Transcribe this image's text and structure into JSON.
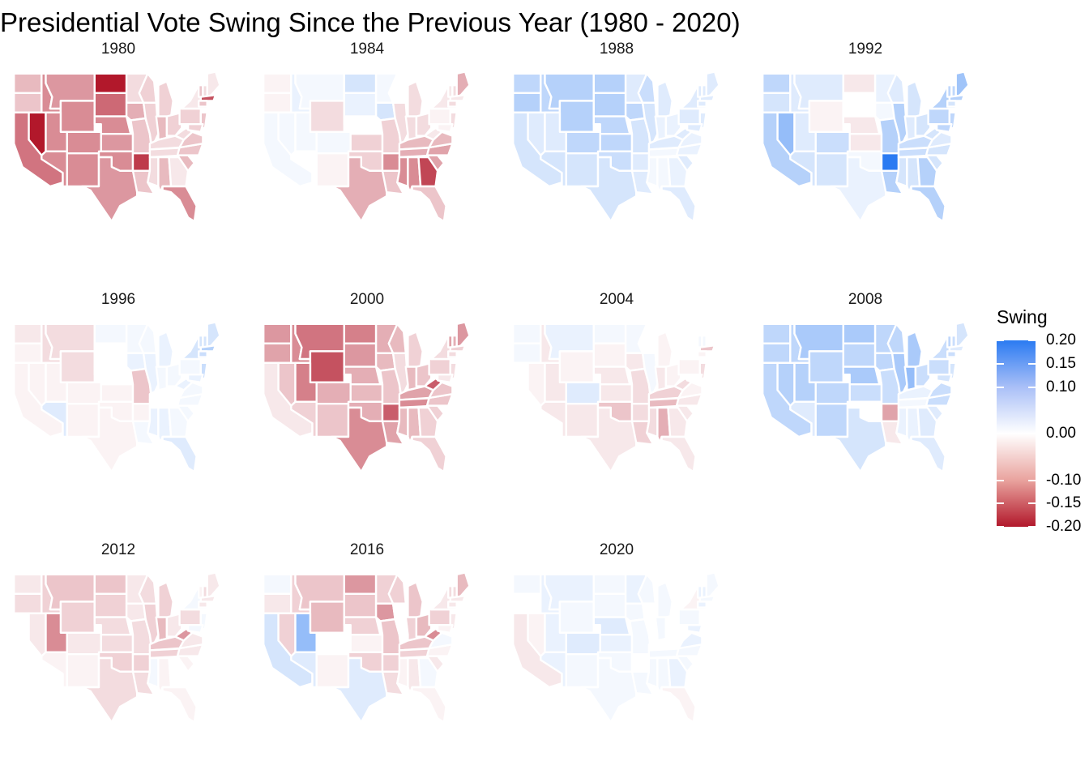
{
  "title": "Presidential Vote Swing Since the Previous Year (1980 - 2020)",
  "legend": {
    "title": "Swing",
    "ticks": [
      "0.20",
      "0.15",
      "0.10",
      "0.00",
      "-0.10",
      "-0.15",
      "-0.20"
    ],
    "tick_values": [
      0.2,
      0.15,
      0.1,
      0.0,
      -0.1,
      -0.15,
      -0.2
    ],
    "colors": {
      "positive": "#2b7bf2",
      "neutral": "#ffffff",
      "negative": "#b2182b"
    }
  },
  "chart_data": {
    "type": "choropleth",
    "value_range": [
      -0.2,
      0.2
    ],
    "states": [
      "WA",
      "OR",
      "CA",
      "NV",
      "ID",
      "MT",
      "WY",
      "UT",
      "AZ",
      "CO",
      "NM",
      "ND",
      "SD",
      "NE",
      "KS",
      "OK",
      "TX",
      "MN",
      "IA",
      "MO",
      "AR",
      "LA",
      "WI",
      "IL",
      "MI",
      "IN",
      "OH",
      "KY",
      "TN",
      "MS",
      "AL",
      "GA",
      "FL",
      "SC",
      "NC",
      "VA",
      "WV",
      "PA",
      "NY",
      "VT",
      "NH",
      "ME",
      "MA",
      "CT",
      "NJ",
      "MD"
    ],
    "panels": [
      {
        "year": "1980",
        "values": {
          "WA": -0.06,
          "OR": -0.05,
          "CA": -0.12,
          "NV": -0.2,
          "ID": -0.1,
          "MT": -0.09,
          "WY": -0.1,
          "UT": -0.1,
          "AZ": -0.1,
          "CO": -0.1,
          "NM": -0.1,
          "ND": -0.2,
          "SD": -0.13,
          "NE": -0.1,
          "KS": -0.09,
          "OK": -0.1,
          "TX": -0.09,
          "MN": -0.03,
          "IA": -0.07,
          "MO": -0.05,
          "AR": -0.17,
          "LA": -0.05,
          "WI": -0.04,
          "IL": -0.04,
          "MI": -0.04,
          "IN": -0.06,
          "OH": -0.04,
          "KY": -0.03,
          "TN": -0.03,
          "MS": -0.03,
          "AL": -0.06,
          "GA": -0.02,
          "FL": -0.1,
          "SC": -0.06,
          "NC": -0.05,
          "VA": -0.05,
          "WV": -0.03,
          "PA": -0.04,
          "NY": -0.02,
          "VT": -0.05,
          "NH": -0.03,
          "ME": -0.02,
          "MA": -0.15,
          "CT": -0.05,
          "NJ": -0.05,
          "MD": -0.04
        }
      },
      {
        "year": "1984",
        "values": {
          "WA": -0.01,
          "OR": -0.01,
          "CA": 0.01,
          "NV": 0.01,
          "ID": 0.02,
          "MT": 0.01,
          "WY": -0.03,
          "UT": 0.01,
          "AZ": 0.0,
          "CO": 0.01,
          "NM": -0.01,
          "ND": 0.04,
          "SD": 0.02,
          "NE": 0.0,
          "KS": -0.04,
          "OK": -0.04,
          "TX": -0.07,
          "MN": 0.01,
          "IA": 0.04,
          "MO": -0.04,
          "AR": -0.1,
          "LA": -0.05,
          "WI": 0.0,
          "IL": -0.03,
          "MI": -0.03,
          "IN": -0.03,
          "OH": -0.03,
          "KY": -0.06,
          "TN": -0.07,
          "MS": -0.1,
          "AL": -0.1,
          "GA": -0.16,
          "FL": -0.05,
          "SC": -0.08,
          "NC": -0.08,
          "VA": -0.06,
          "WV": -0.02,
          "PA": -0.01,
          "NY": -0.02,
          "VT": -0.02,
          "NH": -0.03,
          "ME": -0.07,
          "MA": -0.02,
          "CT": -0.03,
          "NJ": -0.03,
          "MD": -0.01
        }
      },
      {
        "year": "1988",
        "values": {
          "WA": 0.06,
          "OR": 0.07,
          "CA": 0.04,
          "NV": 0.03,
          "ID": 0.06,
          "MT": 0.07,
          "WY": 0.07,
          "UT": 0.03,
          "AZ": 0.04,
          "CO": 0.06,
          "NM": 0.04,
          "ND": 0.07,
          "SD": 0.07,
          "NE": 0.06,
          "KS": 0.06,
          "OK": 0.05,
          "TX": 0.04,
          "MN": 0.03,
          "IA": 0.06,
          "MO": 0.04,
          "AR": 0.03,
          "LA": 0.03,
          "WI": 0.05,
          "IL": 0.04,
          "MI": 0.03,
          "IN": 0.02,
          "OH": 0.02,
          "KY": 0.03,
          "TN": 0.01,
          "MS": 0.01,
          "AL": 0.01,
          "GA": 0.02,
          "FL": 0.03,
          "SC": 0.03,
          "NC": 0.02,
          "VA": 0.02,
          "WV": 0.03,
          "PA": 0.03,
          "NY": 0.03,
          "VT": 0.03,
          "NH": 0.03,
          "ME": 0.03,
          "MA": 0.03,
          "CT": 0.03,
          "NJ": 0.03,
          "MD": 0.03
        }
      },
      {
        "year": "1992",
        "values": {
          "WA": 0.06,
          "OR": 0.04,
          "CA": 0.07,
          "NV": 0.1,
          "ID": 0.03,
          "MT": 0.03,
          "WY": -0.01,
          "UT": 0.03,
          "AZ": 0.04,
          "CO": 0.05,
          "NM": 0.04,
          "ND": -0.02,
          "SD": 0.0,
          "NE": -0.02,
          "KS": -0.02,
          "OK": 0.01,
          "TX": 0.02,
          "MN": 0.02,
          "IA": 0.01,
          "MO": 0.07,
          "AR": 0.2,
          "LA": 0.07,
          "WI": 0.03,
          "IL": 0.07,
          "MI": 0.04,
          "IN": 0.03,
          "OH": 0.04,
          "KY": 0.05,
          "TN": 0.05,
          "MS": 0.04,
          "AL": 0.04,
          "GA": 0.07,
          "FL": 0.07,
          "SC": 0.04,
          "NC": 0.04,
          "VA": 0.03,
          "WV": 0.04,
          "PA": 0.06,
          "NY": 0.07,
          "VT": 0.06,
          "NH": 0.06,
          "ME": 0.09,
          "MA": 0.07,
          "CT": 0.04,
          "NJ": 0.06,
          "MD": 0.06
        }
      },
      {
        "year": "1996",
        "values": {
          "WA": -0.02,
          "OR": -0.01,
          "CA": -0.01,
          "NV": -0.01,
          "ID": -0.03,
          "MT": -0.03,
          "WY": -0.03,
          "UT": -0.01,
          "AZ": 0.03,
          "CO": -0.01,
          "NM": -0.01,
          "ND": 0.01,
          "SD": 0.0,
          "NE": 0.0,
          "KS": -0.01,
          "OK": -0.01,
          "TX": -0.01,
          "MN": 0.01,
          "IA": 0.02,
          "MO": -0.05,
          "AR": -0.01,
          "LA": 0.01,
          "WI": 0.01,
          "IL": 0.02,
          "MI": 0.02,
          "IN": 0.01,
          "OH": 0.01,
          "KY": 0.0,
          "TN": 0.0,
          "MS": 0.02,
          "AL": 0.02,
          "GA": 0.01,
          "FL": 0.03,
          "SC": 0.01,
          "NC": 0.01,
          "VA": 0.01,
          "WV": 0.02,
          "PA": 0.01,
          "NY": 0.04,
          "VT": 0.04,
          "NH": 0.04,
          "ME": 0.04,
          "MA": 0.07,
          "CT": 0.05,
          "NJ": 0.05,
          "MD": 0.02
        }
      },
      {
        "year": "2000",
        "values": {
          "WA": -0.09,
          "OR": -0.08,
          "CA": -0.02,
          "NV": -0.05,
          "ID": -0.1,
          "MT": -0.12,
          "WY": -0.15,
          "UT": -0.11,
          "AZ": -0.04,
          "CO": -0.07,
          "NM": -0.05,
          "ND": -0.11,
          "SD": -0.09,
          "NE": -0.07,
          "KS": -0.06,
          "OK": -0.07,
          "TX": -0.1,
          "MN": -0.07,
          "IA": -0.06,
          "MO": -0.05,
          "AR": -0.14,
          "LA": -0.08,
          "WI": -0.06,
          "IL": -0.03,
          "MI": -0.04,
          "IN": -0.06,
          "OH": -0.05,
          "KY": -0.08,
          "TN": -0.1,
          "MS": -0.06,
          "AL": -0.06,
          "GA": -0.04,
          "FL": -0.04,
          "SC": -0.04,
          "NC": -0.05,
          "VA": -0.05,
          "WV": -0.14,
          "PA": -0.04,
          "NY": -0.03,
          "VT": -0.08,
          "NH": -0.07,
          "ME": -0.09,
          "MA": -0.04,
          "CT": -0.03,
          "NJ": -0.03,
          "MD": -0.02
        }
      },
      {
        "year": "2004",
        "values": {
          "WA": 0.01,
          "OR": 0.01,
          "CA": 0.0,
          "NV": -0.01,
          "ID": -0.02,
          "MT": 0.02,
          "WY": -0.01,
          "UT": -0.02,
          "AZ": -0.02,
          "CO": 0.03,
          "NM": -0.02,
          "ND": 0.01,
          "SD": -0.01,
          "NE": -0.02,
          "KS": -0.02,
          "OK": -0.05,
          "TX": -0.02,
          "MN": 0.01,
          "IA": -0.02,
          "MO": -0.03,
          "AR": -0.03,
          "LA": -0.04,
          "WI": 0.0,
          "IL": 0.01,
          "MI": -0.01,
          "IN": -0.02,
          "OH": -0.01,
          "KY": -0.04,
          "TN": -0.06,
          "MS": -0.03,
          "AL": -0.07,
          "GA": -0.02,
          "FL": -0.02,
          "SC": -0.02,
          "NC": -0.02,
          "VA": -0.01,
          "WV": -0.03,
          "PA": -0.01,
          "NY": 0.0,
          "VT": 0.01,
          "NH": 0.01,
          "ME": 0.0,
          "MA": -0.05,
          "CT": -0.01,
          "NJ": -0.03,
          "MD": 0.0
        }
      },
      {
        "year": "2008",
        "values": {
          "WA": 0.06,
          "OR": 0.06,
          "CA": 0.06,
          "NV": 0.07,
          "ID": 0.06,
          "MT": 0.08,
          "WY": 0.06,
          "UT": 0.07,
          "AZ": 0.03,
          "CO": 0.06,
          "NM": 0.06,
          "ND": 0.08,
          "SD": 0.06,
          "NE": 0.08,
          "KS": 0.05,
          "OK": 0.0,
          "TX": 0.04,
          "MN": 0.06,
          "IA": 0.06,
          "MO": 0.05,
          "AR": -0.08,
          "LA": -0.02,
          "WI": 0.06,
          "IL": 0.08,
          "MI": 0.08,
          "IN": 0.1,
          "OH": 0.05,
          "KY": 0.02,
          "TN": 0.01,
          "MS": 0.02,
          "AL": 0.02,
          "GA": 0.03,
          "FL": 0.03,
          "SC": 0.03,
          "NC": 0.05,
          "VA": 0.05,
          "WV": 0.0,
          "PA": 0.05,
          "NY": 0.05,
          "VT": 0.06,
          "NH": 0.05,
          "ME": 0.04,
          "MA": 0.03,
          "CT": 0.05,
          "NJ": 0.04,
          "MD": 0.04
        }
      },
      {
        "year": "2012",
        "values": {
          "WA": -0.02,
          "OR": -0.03,
          "CA": 0.0,
          "NV": -0.02,
          "ID": -0.04,
          "MT": -0.05,
          "WY": -0.04,
          "UT": -0.1,
          "AZ": -0.01,
          "CO": -0.02,
          "NM": -0.01,
          "ND": -0.05,
          "SD": -0.04,
          "NE": -0.03,
          "KS": -0.03,
          "OK": -0.04,
          "TX": -0.03,
          "MN": -0.02,
          "IA": -0.02,
          "MO": -0.03,
          "AR": -0.04,
          "LA": -0.03,
          "WI": -0.03,
          "IL": -0.04,
          "MI": -0.04,
          "IN": -0.06,
          "OH": -0.02,
          "KY": -0.05,
          "TN": -0.04,
          "MS": 0.01,
          "AL": -0.01,
          "GA": 0.0,
          "FL": -0.01,
          "SC": -0.01,
          "NC": -0.02,
          "VA": -0.02,
          "WV": -0.09,
          "PA": -0.03,
          "NY": 0.01,
          "VT": -0.01,
          "NH": -0.03,
          "ME": -0.02,
          "MA": -0.02,
          "CT": -0.02,
          "NJ": 0.01,
          "MD": 0.01
        }
      },
      {
        "year": "2016",
        "values": {
          "WA": 0.01,
          "OR": -0.02,
          "CA": 0.04,
          "NV": -0.04,
          "ID": -0.04,
          "MT": -0.05,
          "WY": -0.06,
          "UT": 0.1,
          "AZ": 0.03,
          "CO": 0.0,
          "NM": -0.01,
          "ND": -0.09,
          "SD": -0.05,
          "NE": -0.04,
          "KS": -0.01,
          "OK": -0.04,
          "TX": 0.03,
          "MN": -0.04,
          "IA": -0.09,
          "MO": -0.05,
          "AR": -0.04,
          "LA": -0.03,
          "WI": -0.04,
          "IL": 0.0,
          "MI": -0.05,
          "IN": -0.04,
          "OH": -0.06,
          "KY": -0.05,
          "TN": -0.04,
          "MS": -0.01,
          "AL": -0.02,
          "GA": 0.01,
          "FL": -0.01,
          "SC": -0.02,
          "NC": -0.01,
          "VA": 0.01,
          "WV": -0.1,
          "PA": -0.04,
          "NY": -0.02,
          "VT": -0.03,
          "NH": -0.03,
          "ME": -0.06,
          "MA": -0.02,
          "CT": -0.02,
          "NJ": -0.02,
          "MD": -0.01
        }
      },
      {
        "year": "2020",
        "values": {
          "WA": 0.01,
          "OR": 0.0,
          "CA": -0.02,
          "NV": -0.01,
          "ID": 0.02,
          "MT": 0.02,
          "WY": 0.01,
          "UT": 0.02,
          "AZ": 0.02,
          "CO": 0.03,
          "NM": 0.01,
          "ND": 0.01,
          "SD": 0.01,
          "NE": 0.03,
          "KS": 0.02,
          "OK": 0.01,
          "TX": 0.01,
          "MN": 0.02,
          "IA": 0.01,
          "MO": 0.01,
          "AR": 0.0,
          "LA": 0.01,
          "WI": 0.01,
          "IL": 0.0,
          "MI": 0.01,
          "IN": 0.01,
          "OH": 0.0,
          "KY": 0.0,
          "TN": 0.01,
          "MS": 0.01,
          "AL": 0.01,
          "GA": 0.02,
          "FL": -0.01,
          "SC": 0.01,
          "NC": 0.01,
          "VA": 0.02,
          "WV": 0.0,
          "PA": 0.01,
          "NY": -0.01,
          "VT": 0.02,
          "NH": 0.02,
          "ME": 0.01,
          "MA": 0.01,
          "CT": 0.02,
          "NJ": 0.0,
          "MD": 0.02
        }
      }
    ]
  }
}
